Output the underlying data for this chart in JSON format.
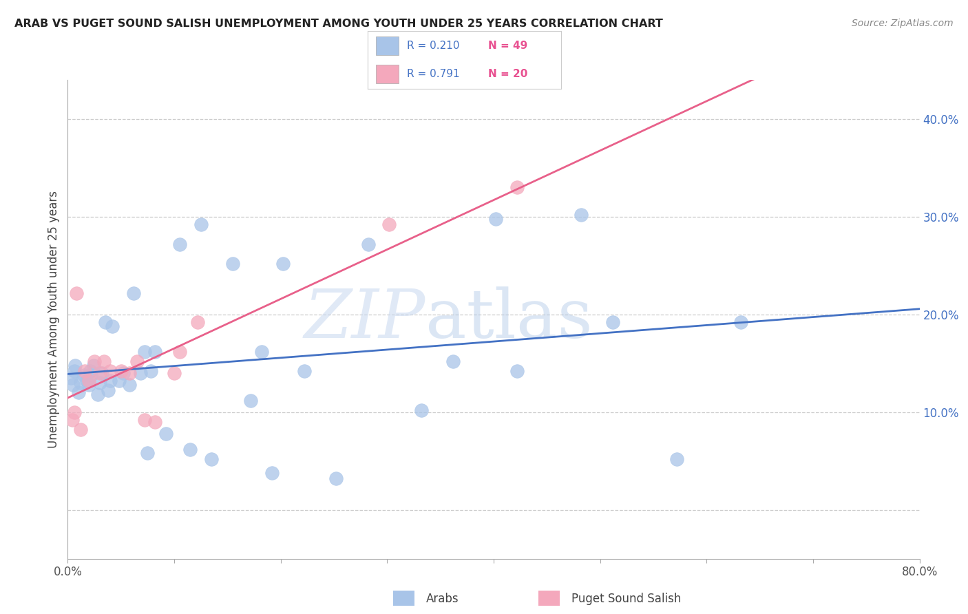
{
  "title": "ARAB VS PUGET SOUND SALISH UNEMPLOYMENT AMONG YOUTH UNDER 25 YEARS CORRELATION CHART",
  "source": "Source: ZipAtlas.com",
  "ylabel": "Unemployment Among Youth under 25 years",
  "xlim": [
    0.0,
    0.8
  ],
  "ylim": [
    -0.05,
    0.44
  ],
  "xticks": [
    0.0,
    0.1,
    0.2,
    0.3,
    0.4,
    0.5,
    0.6,
    0.7,
    0.8
  ],
  "xtick_labels": [
    "0.0%",
    "",
    "",
    "",
    "",
    "",
    "",
    "",
    "80.0%"
  ],
  "yticks": [
    0.0,
    0.1,
    0.2,
    0.3,
    0.4
  ],
  "ytick_labels": [
    "",
    "10.0%",
    "20.0%",
    "30.0%",
    "40.0%"
  ],
  "arab_color": "#a8c4e8",
  "salish_color": "#f4a8bc",
  "arab_line_color": "#4472c4",
  "salish_line_color": "#e8608a",
  "arab_R": 0.21,
  "arab_N": 49,
  "salish_R": 0.791,
  "salish_N": 20,
  "watermark_zip": "ZIP",
  "watermark_atlas": "atlas",
  "background_color": "#ffffff",
  "arab_x": [
    0.003,
    0.005,
    0.006,
    0.007,
    0.01,
    0.012,
    0.015,
    0.018,
    0.02,
    0.021,
    0.022,
    0.024,
    0.028,
    0.03,
    0.032,
    0.035,
    0.038,
    0.04,
    0.042,
    0.048,
    0.052,
    0.058,
    0.062,
    0.068,
    0.072,
    0.075,
    0.078,
    0.082,
    0.092,
    0.105,
    0.115,
    0.125,
    0.135,
    0.155,
    0.172,
    0.182,
    0.192,
    0.202,
    0.222,
    0.252,
    0.282,
    0.332,
    0.362,
    0.402,
    0.422,
    0.482,
    0.512,
    0.572,
    0.632
  ],
  "arab_y": [
    0.135,
    0.128,
    0.142,
    0.148,
    0.12,
    0.13,
    0.138,
    0.132,
    0.128,
    0.142,
    0.138,
    0.148,
    0.118,
    0.13,
    0.14,
    0.192,
    0.122,
    0.132,
    0.188,
    0.132,
    0.14,
    0.128,
    0.222,
    0.14,
    0.162,
    0.058,
    0.142,
    0.162,
    0.078,
    0.272,
    0.062,
    0.292,
    0.052,
    0.252,
    0.112,
    0.162,
    0.038,
    0.252,
    0.142,
    0.032,
    0.272,
    0.102,
    0.152,
    0.298,
    0.142,
    0.302,
    0.192,
    0.052,
    0.192
  ],
  "salish_x": [
    0.004,
    0.006,
    0.008,
    0.012,
    0.016,
    0.02,
    0.025,
    0.03,
    0.034,
    0.04,
    0.05,
    0.058,
    0.065,
    0.072,
    0.082,
    0.1,
    0.105,
    0.122,
    0.302,
    0.422
  ],
  "salish_y": [
    0.092,
    0.1,
    0.222,
    0.082,
    0.142,
    0.132,
    0.152,
    0.14,
    0.152,
    0.142,
    0.142,
    0.14,
    0.152,
    0.092,
    0.09,
    0.14,
    0.162,
    0.192,
    0.292,
    0.33
  ]
}
